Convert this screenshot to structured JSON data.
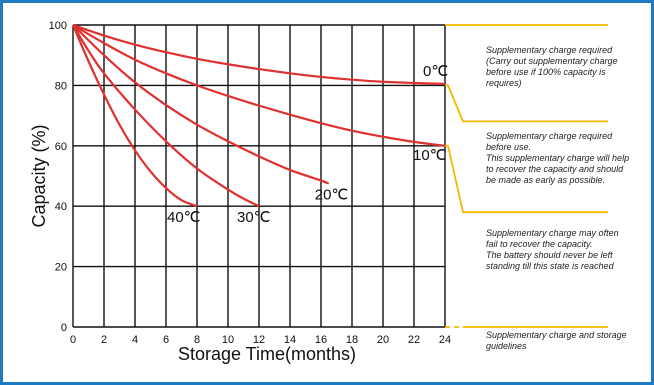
{
  "chart_data": {
    "type": "line",
    "title": "",
    "xlabel": "Storage  Time(months)",
    "ylabel": "Capacity   (%)",
    "xlim": [
      0,
      24
    ],
    "ylim": [
      0,
      100
    ],
    "x_ticks": [
      "0",
      "2",
      "4",
      "6",
      "8",
      "10",
      "12",
      "14",
      "16",
      "18",
      "20",
      "22",
      "24"
    ],
    "y_ticks": [
      "0",
      "20",
      "40",
      "60",
      "80",
      "100"
    ],
    "grid": true,
    "series": [
      {
        "name": "0℃",
        "color": "#e03131",
        "points": [
          [
            0,
            100
          ],
          [
            2,
            96.5
          ],
          [
            4,
            93.5
          ],
          [
            6,
            91
          ],
          [
            8,
            88.8
          ],
          [
            10,
            87
          ],
          [
            12,
            85.4
          ],
          [
            14,
            84
          ],
          [
            16,
            82.8
          ],
          [
            18,
            81.9
          ],
          [
            20,
            81.2
          ],
          [
            22,
            80.8
          ],
          [
            24,
            80.5
          ]
        ]
      },
      {
        "name": "10℃",
        "color": "#e03131",
        "points": [
          [
            0,
            100
          ],
          [
            2,
            94
          ],
          [
            4,
            88.5
          ],
          [
            6,
            84
          ],
          [
            8,
            80
          ],
          [
            10,
            76.5
          ],
          [
            12,
            73.3
          ],
          [
            14,
            70.3
          ],
          [
            16,
            67.5
          ],
          [
            18,
            65
          ],
          [
            20,
            63
          ],
          [
            22,
            61.3
          ],
          [
            24,
            60
          ]
        ]
      },
      {
        "name": "20℃",
        "color": "#e03131",
        "points": [
          [
            0,
            100
          ],
          [
            2,
            90
          ],
          [
            4,
            81
          ],
          [
            6,
            73.5
          ],
          [
            8,
            67
          ],
          [
            10,
            61.5
          ],
          [
            12,
            56.5
          ],
          [
            14,
            52
          ],
          [
            16,
            48.5
          ],
          [
            16.5,
            47.5
          ]
        ]
      },
      {
        "name": "30℃",
        "color": "#e03131",
        "points": [
          [
            0,
            100
          ],
          [
            1,
            91.5
          ],
          [
            2,
            84
          ],
          [
            4,
            72
          ],
          [
            6,
            61.5
          ],
          [
            8,
            52.5
          ],
          [
            10,
            45.5
          ],
          [
            11,
            42.5
          ],
          [
            12,
            40
          ]
        ]
      },
      {
        "name": "40℃",
        "color": "#e03131",
        "points": [
          [
            0,
            100
          ],
          [
            1,
            88
          ],
          [
            2,
            77
          ],
          [
            3,
            67
          ],
          [
            4,
            58.5
          ],
          [
            5,
            51.5
          ],
          [
            6,
            46
          ],
          [
            7,
            42
          ],
          [
            8,
            40
          ]
        ]
      }
    ],
    "curve_labels": [
      {
        "series": "0℃",
        "text": "0℃"
      },
      {
        "series": "10℃",
        "text": "10℃"
      },
      {
        "series": "20℃",
        "text": "20℃"
      },
      {
        "series": "30℃",
        "text": "30℃"
      },
      {
        "series": "40℃",
        "text": "40℃"
      }
    ]
  },
  "guideline_notes": [
    {
      "lines": [
        "Supplementary charge required",
        "(Carry out supplementary charge",
        "before use if 100% capacity is",
        "requires)"
      ]
    },
    {
      "lines": [
        "Supplementary charge required",
        "before use.",
        "This supplementary charge will help",
        "to recover the capacity and should",
        "be made  as early as possible."
      ]
    },
    {
      "lines": [
        "Supplementary charge may often",
        "fail to recover the capacity.",
        "The battery should never be left",
        "standing till this state is reached"
      ]
    },
    {
      "lines": [
        "Supplementary charge and storage",
        "guidelines"
      ]
    }
  ],
  "colors": {
    "frame": "#1f7ac2",
    "curve": "#e03131",
    "bracket": "#f5b800",
    "grid": "#111111"
  }
}
